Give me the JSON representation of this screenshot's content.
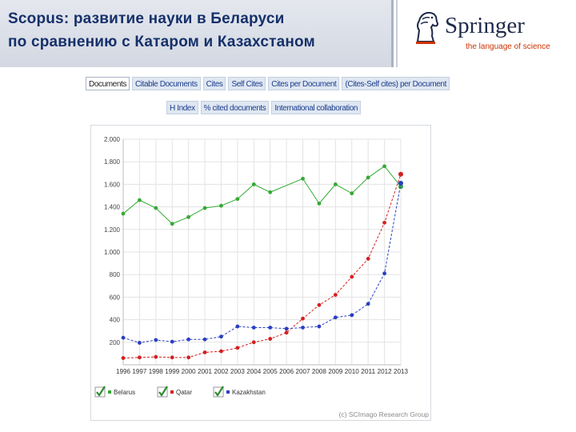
{
  "header": {
    "title_line1": "Scopus: развитие науки в Беларуси",
    "title_line2": "по сравнению с Катаром и Казахстаном"
  },
  "logo": {
    "name": "Springer",
    "tagline": "the language of science",
    "icon": "springer-horse-icon"
  },
  "tabs_row1": [
    "Documents",
    "Citable Documents",
    "Cites",
    "Self Cites",
    "Cites per Document",
    "(Cites-Self cites) per Document"
  ],
  "tabs_row2": [
    "H Index",
    "% cited documents",
    "International collaboration"
  ],
  "active_tab": "Documents",
  "chart_data": {
    "type": "line",
    "x": [
      "1996",
      "1997",
      "1998",
      "1999",
      "2000",
      "2001",
      "2002",
      "2003",
      "2004",
      "2005",
      "2006",
      "2007",
      "2008",
      "2009",
      "2010",
      "2011",
      "2012",
      "2013"
    ],
    "yticks": [
      "2.000",
      "1.800",
      "1.600",
      "1.400",
      "1.200",
      "1.000",
      "800",
      "600",
      "400",
      "200"
    ],
    "ylim": [
      0,
      2000
    ],
    "grid": true,
    "series": [
      {
        "name": "Belarus",
        "color": "#33aa33",
        "values": [
          1340,
          1460,
          1390,
          1250,
          1310,
          1390,
          1410,
          1470,
          1600,
          1530,
          null,
          1650,
          1430,
          1600,
          1520,
          1660,
          1760,
          1580
        ]
      },
      {
        "name": "Qatar",
        "color": "#d42020",
        "values": [
          60,
          65,
          70,
          65,
          65,
          110,
          120,
          150,
          200,
          230,
          285,
          410,
          530,
          620,
          780,
          940,
          1260,
          1690
        ]
      },
      {
        "name": "Kazakhstan",
        "color": "#2a3fc0",
        "values": [
          240,
          195,
          220,
          205,
          225,
          225,
          250,
          340,
          330,
          330,
          320,
          330,
          340,
          420,
          440,
          540,
          810,
          1610
        ]
      }
    ],
    "legend_placement": "bottom",
    "credit": "(c) SCImago Research Group"
  },
  "colors": {
    "title_text": "#15306a",
    "tab_text": "#1b3c8c",
    "tab_bg": "#dfe7f2",
    "springer_accent": "#cc3300",
    "checkbox_green": "#2e8b2e"
  }
}
